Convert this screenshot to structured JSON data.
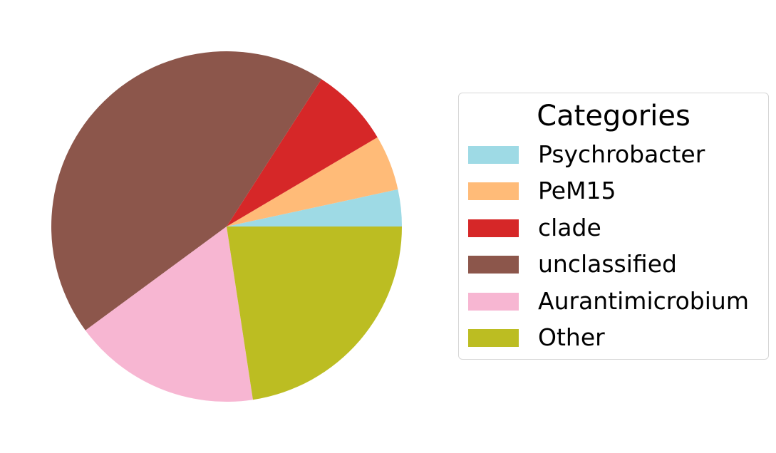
{
  "chart_data": {
    "type": "pie",
    "title": "",
    "categories": [
      "Psychrobacter",
      "PeM15",
      "clade",
      "unclassified",
      "Aurantimicrobium",
      "Other"
    ],
    "values": [
      3.4,
      5.1,
      7.4,
      44.2,
      17.3,
      22.6
    ],
    "colors": [
      "#9edae5",
      "#ffbb78",
      "#d62728",
      "#8c564b",
      "#f7b6d2",
      "#bcbd22"
    ],
    "start_angle_deg": 0,
    "direction": "counterclockwise",
    "legend": {
      "title": "Categories",
      "placement": "center-right"
    }
  }
}
